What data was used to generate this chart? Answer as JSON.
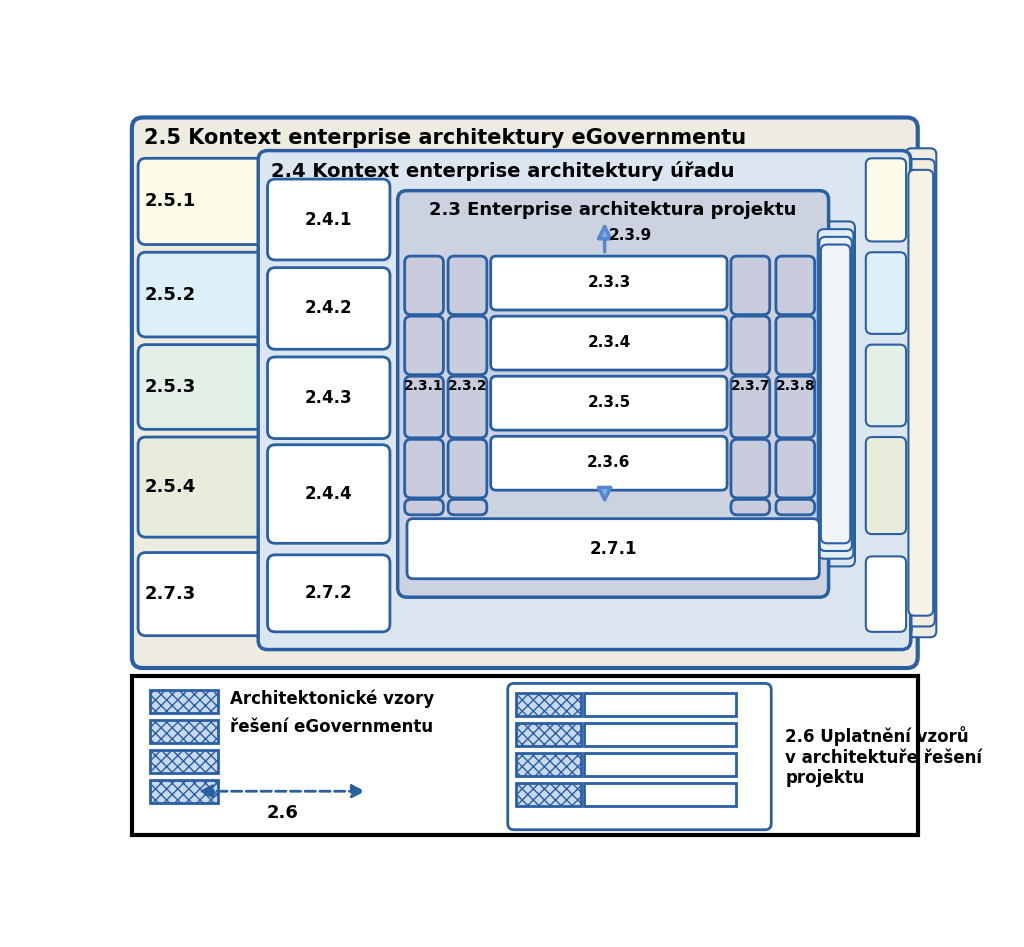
{
  "border_color": "#2b5fa3",
  "title_25": "2.5 Kontext enterprise architektury eGovernmentu",
  "title_24": "2.4 Kontext enterprise architektury úřadu",
  "title_23": "2.3 Enterprise architektura projektu",
  "box_25_color": "#eeebe0",
  "box_24_color": "#dce6f0",
  "box_23_color": "#cdd2e0",
  "col23_color": "#c8ccdc",
  "labels_25x": [
    "2.5.1",
    "2.5.2",
    "2.5.3",
    "2.5.4"
  ],
  "colors_25x": [
    "#fdfce8",
    "#ddf0fa",
    "#e2f0e8",
    "#e8ecda"
  ],
  "labels_24x": [
    "2.4.1",
    "2.4.2",
    "2.4.3",
    "2.4.4"
  ],
  "label_271": "2.7.1",
  "label_272": "2.7.2",
  "label_273": "2.7.3",
  "inner_rows": [
    "2.3.3",
    "2.3.4",
    "2.3.5",
    "2.3.6"
  ],
  "col_labels_left": [
    "2.3.1",
    "2.3.2"
  ],
  "col_labels_right": [
    "2.3.7",
    "2.3.8"
  ],
  "label_239": "2.3.9",
  "legend_left_text1": "Architektonické vzory",
  "legend_left_text2": "řešení eGovernmentu",
  "legend_right_text": "2.6 Uplatňení vzorů\nv architektuře řešení\nprojektu",
  "legend_arrow_label": "2.6"
}
